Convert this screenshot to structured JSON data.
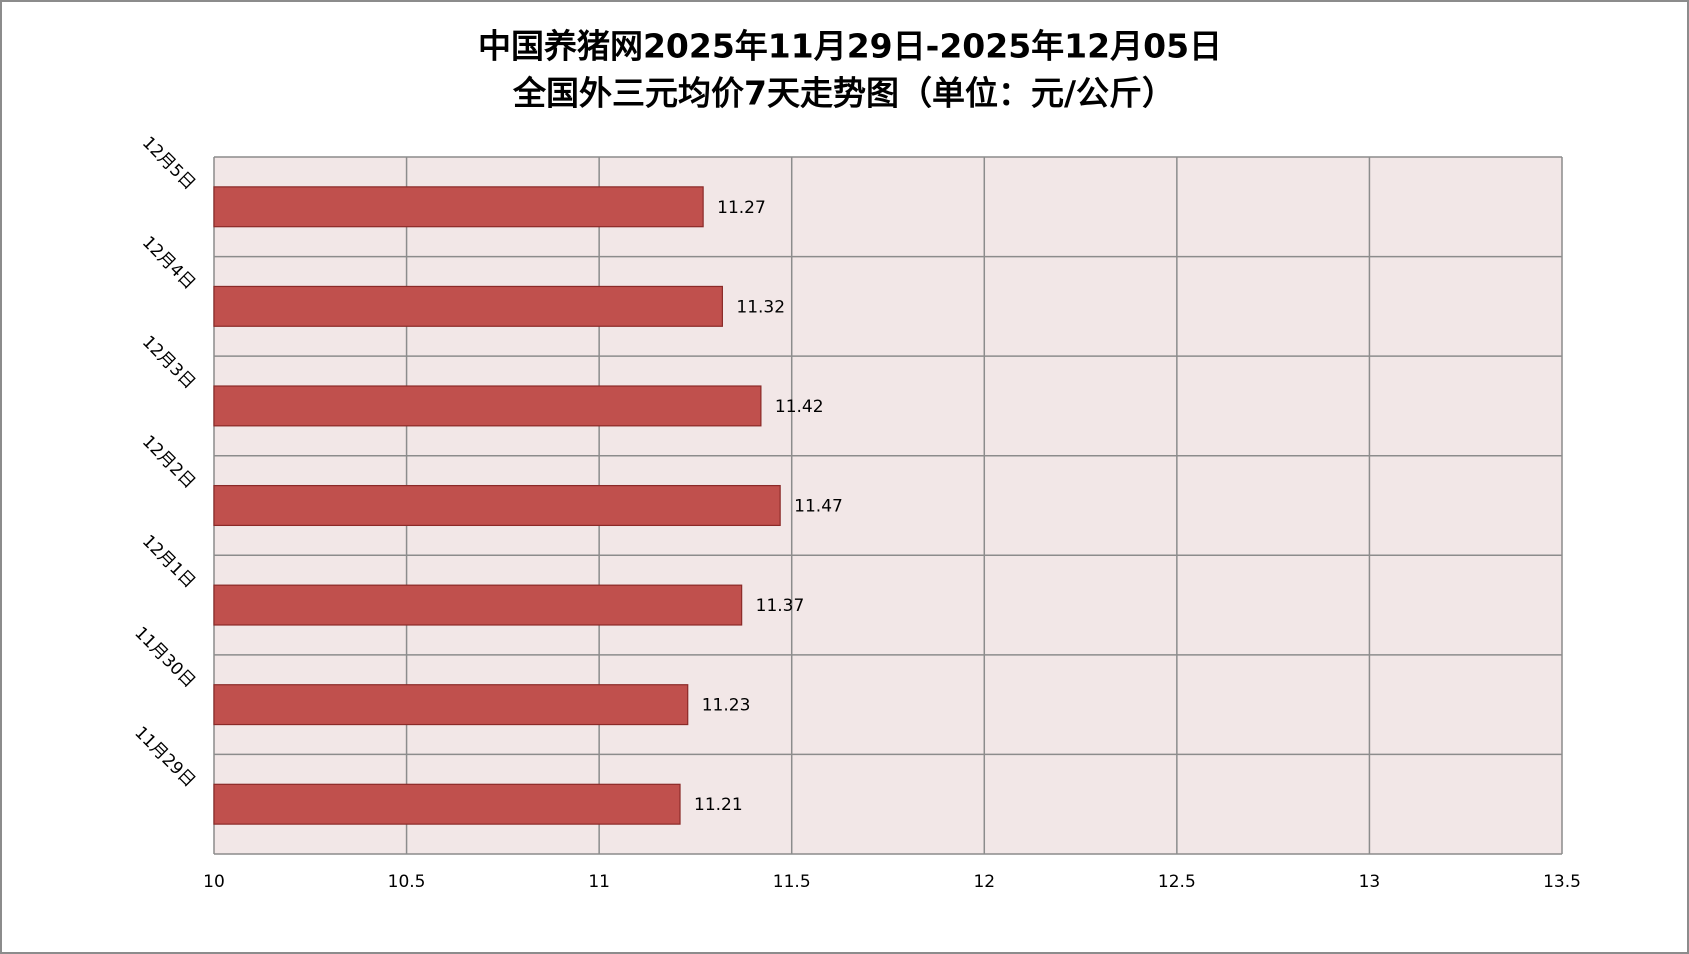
{
  "chart_data": {
    "type": "hbar",
    "title": "中国养猪网2025年11月29日-2025年12月05日",
    "subtitle": "全国外三元均价7天走势图（单位：元/公斤）",
    "categories": [
      "11月29日",
      "11月30日",
      "12月1日",
      "12月2日",
      "12月3日",
      "12月4日",
      "12月5日"
    ],
    "values": [
      11.21,
      11.23,
      11.37,
      11.47,
      11.42,
      11.32,
      11.27
    ],
    "color": "#c0504d",
    "xlim": [
      10,
      13.5
    ],
    "xticks": [
      10,
      10.5,
      11,
      11.5,
      12,
      12.5,
      13,
      13.5
    ],
    "grid": true
  }
}
